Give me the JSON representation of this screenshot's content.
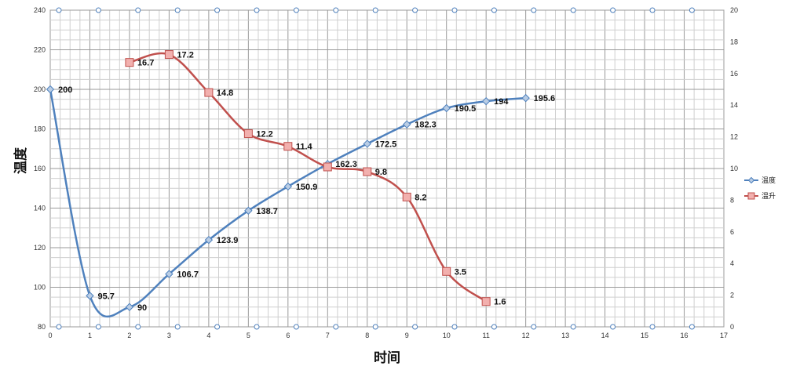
{
  "chart_data": {
    "type": "line",
    "xlabel": "时间",
    "ylabel": "温度",
    "xlim": [
      0,
      17
    ],
    "ylim": [
      80,
      240
    ],
    "y2lim": [
      0,
      20
    ],
    "x_ticks": [
      0,
      1,
      2,
      3,
      4,
      5,
      6,
      7,
      8,
      9,
      10,
      11,
      12,
      13,
      14,
      15,
      16,
      17
    ],
    "y_ticks": [
      80,
      100,
      120,
      140,
      160,
      180,
      200,
      220,
      240
    ],
    "y2_ticks": [
      0,
      2,
      4,
      6,
      8,
      10,
      12,
      14,
      16,
      18,
      20
    ],
    "grid": true,
    "legend_position": "right",
    "series": [
      {
        "name": "温度",
        "axis": "left",
        "color": "#4f81bd",
        "marker": "diamond",
        "x": [
          0,
          1,
          2,
          3,
          4,
          5,
          6,
          7,
          8,
          9,
          10,
          11,
          12
        ],
        "values": [
          200,
          95.7,
          90,
          106.7,
          123.9,
          138.7,
          150.9,
          162.3,
          172.5,
          182.3,
          190.5,
          194,
          195.6
        ],
        "labels": [
          "200",
          "95.7",
          "90",
          "106.7",
          "123.9",
          "138.7",
          "150.9",
          "162.3",
          "172.5",
          "182.3",
          "190.5",
          "194",
          "195.6"
        ]
      },
      {
        "name": "温升",
        "axis": "right",
        "color": "#c0504d",
        "marker": "square",
        "x": [
          2,
          3,
          4,
          5,
          6,
          7,
          8,
          9,
          10,
          11
        ],
        "values": [
          16.7,
          17.2,
          14.8,
          12.2,
          11.4,
          10.1,
          9.8,
          8.2,
          3.5,
          1.6
        ],
        "labels": [
          "16.7",
          "17.2",
          "14.8",
          "12.2",
          "11.4",
          "",
          "9.8",
          "8.2",
          "3.5",
          "1.6"
        ]
      }
    ]
  }
}
